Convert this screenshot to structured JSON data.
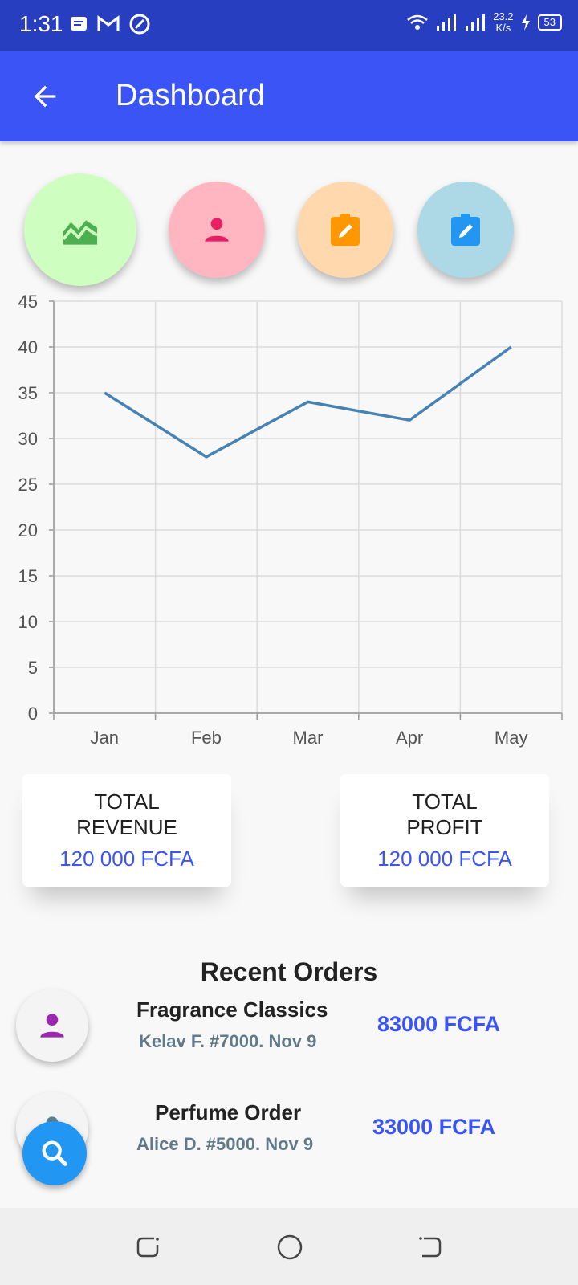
{
  "status_bar": {
    "time": "1:31",
    "speed_value": "23.2",
    "speed_unit": "K/s",
    "battery": "53"
  },
  "app_bar": {
    "title": "Dashboard",
    "back_icon": "arrow-back-icon"
  },
  "quick_actions": [
    {
      "icon": "chart-icon",
      "color": "#cfffc0",
      "icon_color": "#4caf50"
    },
    {
      "icon": "person-icon",
      "color": "#ffb6c1",
      "icon_color": "#e91e63"
    },
    {
      "icon": "clipboard-edit-icon",
      "color": "#ffd8ad",
      "icon_color": "#ff9800"
    },
    {
      "icon": "clipboard-edit-icon",
      "color": "#add8e6",
      "icon_color": "#2196f3"
    }
  ],
  "chart_data": {
    "type": "line",
    "categories": [
      "Jan",
      "Feb",
      "Mar",
      "Apr",
      "May"
    ],
    "series": [
      {
        "values": [
          35,
          28,
          34,
          32,
          40
        ],
        "color": "#4682b4"
      }
    ],
    "ylim": [
      0,
      45
    ],
    "yticks": [
      0,
      5,
      10,
      15,
      20,
      25,
      30,
      35,
      40,
      45
    ],
    "grid": true
  },
  "summary": {
    "revenue": {
      "label": "TOTAL\nREVENUE",
      "value": "120 000 FCFA"
    },
    "profit": {
      "label": "TOTAL\nPROFIT",
      "value": "120 000 FCFA"
    }
  },
  "recent_orders": {
    "title": "Recent Orders",
    "items": [
      {
        "name": "Fragrance Classics",
        "details": "Kelav F. #7000. Nov 9",
        "amount": "83000 FCFA",
        "avatar_color": "#9c27b0"
      },
      {
        "name": "Perfume Order",
        "details": "Alice D. #5000. Nov 9",
        "amount": "33000 FCFA",
        "avatar_color": "#607d8b"
      }
    ]
  },
  "fab": {
    "icon": "search-icon"
  },
  "nav": {
    "recents_icon": "recents-icon",
    "home_icon": "home-icon",
    "back_icon": "back-icon"
  }
}
